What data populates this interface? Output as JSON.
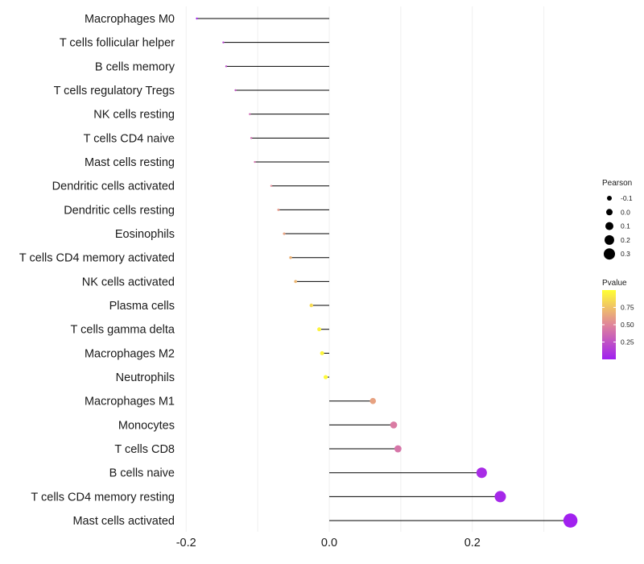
{
  "chart_data": {
    "type": "lollipop",
    "title": "",
    "xlabel": "",
    "ylabel": "",
    "xlim": [
      -0.2,
      0.3
    ],
    "xticks": [
      -0.2,
      0.0,
      0.2
    ],
    "xtick_labels": [
      "-0.2",
      "0.0",
      "0.2"
    ],
    "grid": true,
    "points": [
      {
        "label": "Macrophages M0",
        "value": -0.185,
        "pvalue": 0.02
      },
      {
        "label": "T cells follicular helper",
        "value": -0.148,
        "pvalue": 0.18
      },
      {
        "label": "B cells memory",
        "value": -0.144,
        "pvalue": 0.22
      },
      {
        "label": "T cells regulatory  Tregs",
        "value": -0.131,
        "pvalue": 0.26
      },
      {
        "label": "NK cells resting",
        "value": -0.111,
        "pvalue": 0.35
      },
      {
        "label": "T cells CD4 naive",
        "value": -0.109,
        "pvalue": 0.37
      },
      {
        "label": "Mast cells resting",
        "value": -0.104,
        "pvalue": 0.4
      },
      {
        "label": "Dendritic cells activated",
        "value": -0.081,
        "pvalue": 0.52
      },
      {
        "label": "Dendritic cells resting",
        "value": -0.071,
        "pvalue": 0.58
      },
      {
        "label": "Eosinophils",
        "value": -0.063,
        "pvalue": 0.62
      },
      {
        "label": "T cells CD4 memory activated",
        "value": -0.054,
        "pvalue": 0.68
      },
      {
        "label": "NK cells activated",
        "value": -0.047,
        "pvalue": 0.7
      },
      {
        "label": "Plasma cells",
        "value": -0.025,
        "pvalue": 0.85
      },
      {
        "label": "T cells gamma delta",
        "value": -0.014,
        "pvalue": 0.95
      },
      {
        "label": "Macrophages M2",
        "value": -0.01,
        "pvalue": 0.96
      },
      {
        "label": "Neutrophils",
        "value": -0.005,
        "pvalue": 0.98
      },
      {
        "label": "Macrophages M1",
        "value": 0.061,
        "pvalue": 0.62
      },
      {
        "label": "Monocytes",
        "value": 0.09,
        "pvalue": 0.45
      },
      {
        "label": "T cells CD8",
        "value": 0.096,
        "pvalue": 0.42
      },
      {
        "label": "B cells naive",
        "value": 0.213,
        "pvalue": 0.06
      },
      {
        "label": "T cells CD4 memory resting",
        "value": 0.239,
        "pvalue": 0.04
      },
      {
        "label": "Mast cells activated",
        "value": 0.337,
        "pvalue": 0.005
      }
    ],
    "legend_size": {
      "title": "Pearson",
      "values": [
        -0.1,
        0.0,
        0.1,
        0.2,
        0.3
      ],
      "labels": [
        "-0.1",
        "0.0",
        "0.1",
        "0.2",
        "0.3"
      ]
    },
    "legend_color": {
      "title": "Pvalue",
      "ticks": [
        0.75,
        0.5,
        0.25
      ],
      "tick_labels": [
        "0.75",
        "0.50",
        "0.25"
      ],
      "range": [
        0.0,
        1.0
      ],
      "low_color": "#a020f0",
      "mid_color": "#e0859a",
      "high_color": "#ffff33"
    },
    "colors": {
      "stem": "#000000",
      "grid": "#ebebeb",
      "legend_dot": "#000000"
    }
  }
}
